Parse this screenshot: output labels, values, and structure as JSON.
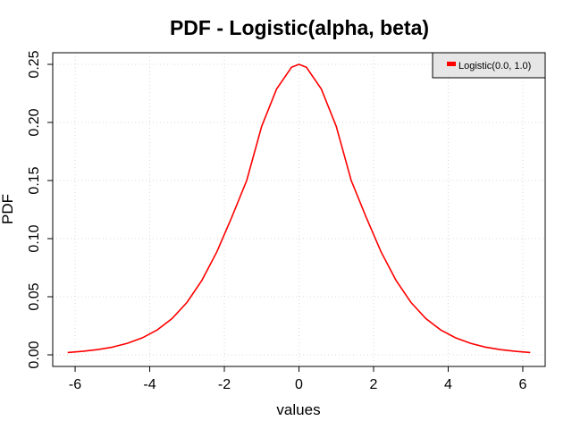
{
  "chart_data": {
    "type": "line",
    "title": "PDF - Logistic(alpha, beta)",
    "xlabel": "values",
    "ylabel": "PDF",
    "xlim": [
      -6.6,
      6.6
    ],
    "ylim": [
      -0.01,
      0.26
    ],
    "x_ticks": [
      "-6",
      "-4",
      "-2",
      "0",
      "2",
      "4",
      "6"
    ],
    "y_ticks": [
      "0.00",
      "0.05",
      "0.10",
      "0.15",
      "0.20",
      "0.25"
    ],
    "grid": true,
    "legend": {
      "position": "top-right",
      "entries": [
        "Logistic(0.0, 1.0)"
      ]
    },
    "series": [
      {
        "name": "Logistic(0.0, 1.0)",
        "color": "#ff0000",
        "x": [
          -6.2,
          -5.8,
          -5.4,
          -5.0,
          -4.6,
          -4.2,
          -3.8,
          -3.4,
          -3.0,
          -2.6,
          -2.2,
          -1.8,
          -1.4,
          -1.0,
          -0.6,
          -0.2,
          0.0,
          0.2,
          0.6,
          1.0,
          1.4,
          1.8,
          2.2,
          2.6,
          3.0,
          3.4,
          3.8,
          4.2,
          4.6,
          5.0,
          5.4,
          5.8,
          6.2
        ],
        "y": [
          0.002,
          0.003,
          0.0045,
          0.0066,
          0.0099,
          0.0146,
          0.0214,
          0.0312,
          0.0452,
          0.0642,
          0.0887,
          0.1185,
          0.1501,
          0.1966,
          0.2287,
          0.2475,
          0.25,
          0.2475,
          0.2287,
          0.1966,
          0.1501,
          0.1185,
          0.0887,
          0.0642,
          0.0452,
          0.0312,
          0.0214,
          0.0146,
          0.0099,
          0.0066,
          0.0045,
          0.003,
          0.002
        ]
      }
    ]
  }
}
